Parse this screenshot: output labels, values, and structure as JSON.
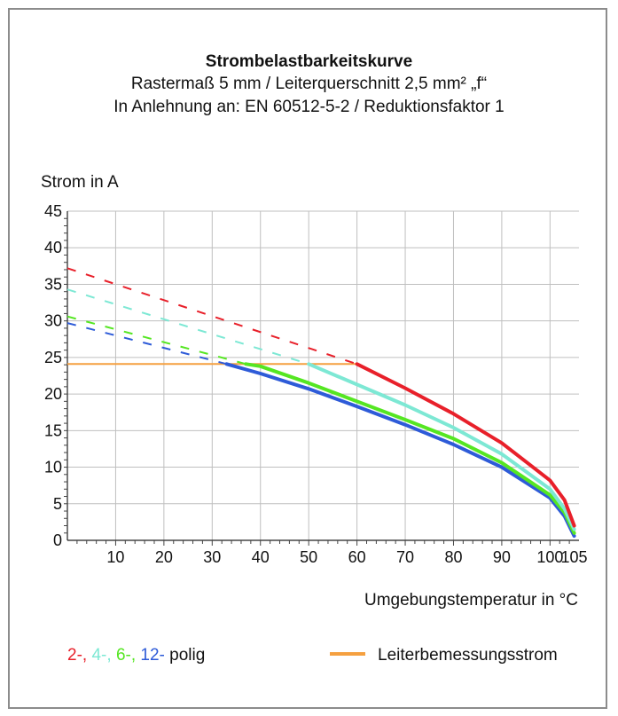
{
  "chart_data": {
    "type": "line",
    "title": "Strombelastbarkeitskurve",
    "subtitle_lines": [
      "Rastermaß 5 mm / Leiterquerschnitt 2,5 mm² „f“",
      "In Anlehnung an: EN 60512-5-2 / Reduktionsfaktor 1"
    ],
    "ylabel": "Strom in A",
    "xlabel": "Umgebungstemperatur in °C",
    "xlim": [
      0,
      106
    ],
    "ylim": [
      0,
      45
    ],
    "xticks": [
      10,
      20,
      30,
      40,
      50,
      60,
      70,
      80,
      90,
      100,
      105
    ],
    "yticks": [
      0,
      5,
      10,
      15,
      20,
      25,
      30,
      35,
      40,
      45
    ],
    "grid": true,
    "colors": {
      "red": "#e8202a",
      "cyan": "#7de8d4",
      "green": "#55e622",
      "blue": "#2e5bd8",
      "orange": "#f5a040",
      "grid": "#bfbfbf"
    },
    "series": [
      {
        "color_key": "red",
        "dashed": [
          [
            0,
            37.2
          ],
          [
            60,
            24.1
          ]
        ],
        "solid": [
          [
            60,
            24.1
          ],
          [
            70,
            20.8
          ],
          [
            80,
            17.3
          ],
          [
            90,
            13.3
          ],
          [
            100,
            8.2
          ],
          [
            103,
            5.5
          ],
          [
            105,
            2.0
          ]
        ]
      },
      {
        "color_key": "cyan",
        "dashed": [
          [
            0,
            34.3
          ],
          [
            50,
            24.1
          ]
        ],
        "solid": [
          [
            50,
            24.1
          ],
          [
            60,
            21.3
          ],
          [
            70,
            18.5
          ],
          [
            80,
            15.4
          ],
          [
            90,
            11.8
          ],
          [
            100,
            7.0
          ],
          [
            103,
            4.3
          ],
          [
            105,
            1.5
          ]
        ]
      },
      {
        "color_key": "green",
        "dashed": [
          [
            0,
            30.6
          ],
          [
            37,
            24.1
          ]
        ],
        "solid": [
          [
            37,
            24.1
          ],
          [
            40,
            23.8
          ],
          [
            50,
            21.5
          ],
          [
            60,
            19.0
          ],
          [
            70,
            16.5
          ],
          [
            80,
            13.9
          ],
          [
            90,
            10.6
          ],
          [
            100,
            6.2
          ],
          [
            103,
            3.8
          ],
          [
            105,
            1.0
          ]
        ]
      },
      {
        "color_key": "blue",
        "dashed": [
          [
            0,
            29.7
          ],
          [
            33,
            24.1
          ]
        ],
        "solid": [
          [
            33,
            24.1
          ],
          [
            40,
            22.8
          ],
          [
            50,
            20.7
          ],
          [
            60,
            18.3
          ],
          [
            70,
            15.8
          ],
          [
            80,
            13.1
          ],
          [
            90,
            10.0
          ],
          [
            100,
            5.8
          ],
          [
            103,
            3.3
          ],
          [
            105,
            0.6
          ]
        ]
      }
    ],
    "rated_current": {
      "color_key": "orange",
      "points": [
        [
          0,
          24.1
        ],
        [
          60,
          24.1
        ]
      ]
    }
  },
  "legend": {
    "poles_labels": [
      {
        "text": "2-,",
        "color": "#e8202a"
      },
      {
        "text": "4-,",
        "color": "#7de8d4"
      },
      {
        "text": "6-,",
        "color": "#55e622"
      },
      {
        "text": "12-",
        "color": "#2e5bd8"
      }
    ],
    "poles_suffix": "polig",
    "rated_label": "Leiterbemessungsstrom"
  }
}
